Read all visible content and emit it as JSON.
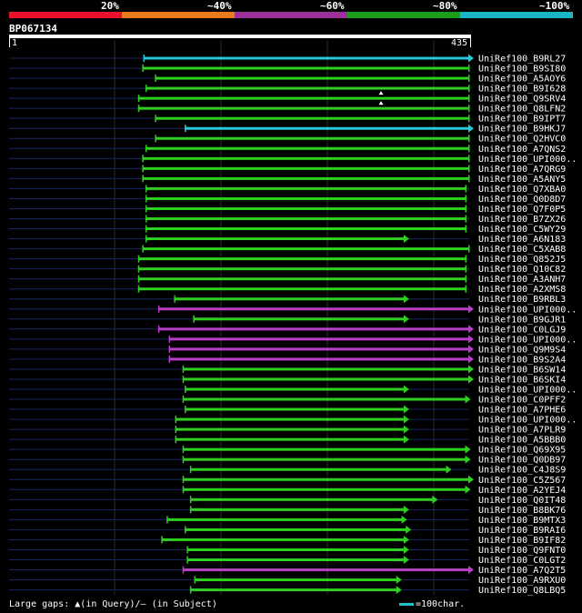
{
  "legend": {
    "labels": [
      "20%",
      "~40%",
      "~60%",
      "~80%",
      "~100%"
    ],
    "colors": [
      "#e8102a",
      "#e87b1c",
      "#9b2f9b",
      "#1a9e1a",
      "#1bb5c4"
    ]
  },
  "query": {
    "id": "BP067134",
    "start": "1",
    "end": "435",
    "length": 435
  },
  "colors": {
    "cyan": "#26c9d9",
    "green": "#2fcf1f",
    "purple": "#b83ec8",
    "background_line": "#1a2560"
  },
  "hits": [
    {
      "id": "UniRef100_B9RL27",
      "start": 128,
      "end": 435,
      "color": "cyan",
      "arrow": true
    },
    {
      "id": "UniRef100_B9SI80",
      "start": 127,
      "end": 435,
      "color": "green",
      "arrow": false
    },
    {
      "id": "UniRef100_A5AOY6",
      "start": 139,
      "end": 435,
      "color": "green",
      "arrow": false
    },
    {
      "id": "UniRef100_B9I628",
      "start": 130,
      "end": 435,
      "color": "green",
      "arrow": false
    },
    {
      "id": "UniRef100_Q9SRV4",
      "start": 123,
      "end": 435,
      "color": "green",
      "arrow": false,
      "gap": true
    },
    {
      "id": "UniRef100_Q8LFN2",
      "start": 123,
      "end": 435,
      "color": "green",
      "arrow": false,
      "gap": true
    },
    {
      "id": "UniRef100_B9IPT7",
      "start": 139,
      "end": 435,
      "color": "green",
      "arrow": false
    },
    {
      "id": "UniRef100_B9HKJ7",
      "start": 167,
      "end": 435,
      "color": "cyan",
      "arrow": true
    },
    {
      "id": "UniRef100_Q2HVC0",
      "start": 139,
      "end": 435,
      "color": "green",
      "arrow": false
    },
    {
      "id": "UniRef100_A7QNS2",
      "start": 130,
      "end": 435,
      "color": "green",
      "arrow": false
    },
    {
      "id": "UniRef100_UPI000..",
      "start": 127,
      "end": 435,
      "color": "green",
      "arrow": false
    },
    {
      "id": "UniRef100_A7QRG9",
      "start": 127,
      "end": 435,
      "color": "green",
      "arrow": false
    },
    {
      "id": "UniRef100_A5ANY5",
      "start": 127,
      "end": 435,
      "color": "green",
      "arrow": false
    },
    {
      "id": "UniRef100_Q7XBA0",
      "start": 130,
      "end": 432,
      "color": "green",
      "arrow": false
    },
    {
      "id": "UniRef100_Q0D8D7",
      "start": 130,
      "end": 432,
      "color": "green",
      "arrow": false
    },
    {
      "id": "UniRef100_Q7F0P5",
      "start": 130,
      "end": 432,
      "color": "green",
      "arrow": false
    },
    {
      "id": "UniRef100_B7ZX26",
      "start": 130,
      "end": 432,
      "color": "green",
      "arrow": false
    },
    {
      "id": "UniRef100_C5WY29",
      "start": 130,
      "end": 432,
      "color": "green",
      "arrow": false
    },
    {
      "id": "UniRef100_A6N183",
      "start": 130,
      "end": 374,
      "color": "green",
      "arrow": true
    },
    {
      "id": "UniRef100_C5XAB8",
      "start": 127,
      "end": 435,
      "color": "green",
      "arrow": false
    },
    {
      "id": "UniRef100_Q852J5",
      "start": 123,
      "end": 432,
      "color": "green",
      "arrow": false
    },
    {
      "id": "UniRef100_Q10C82",
      "start": 123,
      "end": 432,
      "color": "green",
      "arrow": false
    },
    {
      "id": "UniRef100_A3ANH7",
      "start": 123,
      "end": 432,
      "color": "green",
      "arrow": false
    },
    {
      "id": "UniRef100_A2XMS8",
      "start": 123,
      "end": 432,
      "color": "green",
      "arrow": false
    },
    {
      "id": "UniRef100_B9RBL3",
      "start": 157,
      "end": 374,
      "color": "green",
      "arrow": true
    },
    {
      "id": "UniRef100_UPI000..",
      "start": 142,
      "end": 435,
      "color": "purple",
      "arrow": true
    },
    {
      "id": "UniRef100_B9GJR1",
      "start": 175,
      "end": 374,
      "color": "green",
      "arrow": true
    },
    {
      "id": "UniRef100_C0LGJ9",
      "start": 142,
      "end": 435,
      "color": "purple",
      "arrow": true
    },
    {
      "id": "UniRef100_UPI000..",
      "start": 152,
      "end": 435,
      "color": "purple",
      "arrow": true
    },
    {
      "id": "UniRef100_Q9M9S4",
      "start": 152,
      "end": 435,
      "color": "purple",
      "arrow": true
    },
    {
      "id": "UniRef100_B9S2A4",
      "start": 152,
      "end": 435,
      "color": "purple",
      "arrow": true
    },
    {
      "id": "UniRef100_B6SW14",
      "start": 165,
      "end": 435,
      "color": "green",
      "arrow": true
    },
    {
      "id": "UniRef100_B6SKI4",
      "start": 165,
      "end": 435,
      "color": "green",
      "arrow": true
    },
    {
      "id": "UniRef100_UPI000..",
      "start": 167,
      "end": 374,
      "color": "green",
      "arrow": true
    },
    {
      "id": "UniRef100_C0PFF2",
      "start": 165,
      "end": 432,
      "color": "green",
      "arrow": true
    },
    {
      "id": "UniRef100_A7PHE6",
      "start": 167,
      "end": 374,
      "color": "green",
      "arrow": true
    },
    {
      "id": "UniRef100_UPI000..",
      "start": 158,
      "end": 374,
      "color": "green",
      "arrow": true
    },
    {
      "id": "UniRef100_A7PLR9",
      "start": 158,
      "end": 374,
      "color": "green",
      "arrow": true
    },
    {
      "id": "UniRef100_A5BBB0",
      "start": 158,
      "end": 374,
      "color": "green",
      "arrow": true
    },
    {
      "id": "UniRef100_Q69X95",
      "start": 165,
      "end": 432,
      "color": "green",
      "arrow": true
    },
    {
      "id": "UniRef100_Q0DB97",
      "start": 165,
      "end": 432,
      "color": "green",
      "arrow": true
    },
    {
      "id": "UniRef100_C4J8S9",
      "start": 172,
      "end": 414,
      "color": "green",
      "arrow": true
    },
    {
      "id": "UniRef100_C5Z567",
      "start": 165,
      "end": 435,
      "color": "green",
      "arrow": true
    },
    {
      "id": "UniRef100_A2YEJ4",
      "start": 165,
      "end": 432,
      "color": "green",
      "arrow": true
    },
    {
      "id": "UniRef100_Q0IT48",
      "start": 172,
      "end": 401,
      "color": "green",
      "arrow": true
    },
    {
      "id": "UniRef100_B8BK76",
      "start": 172,
      "end": 374,
      "color": "green",
      "arrow": true
    },
    {
      "id": "UniRef100_B9MTX3",
      "start": 150,
      "end": 372,
      "color": "green",
      "arrow": true
    },
    {
      "id": "UniRef100_B9RAI6",
      "start": 167,
      "end": 376,
      "color": "green",
      "arrow": true
    },
    {
      "id": "UniRef100_B9IF82",
      "start": 145,
      "end": 374,
      "color": "green",
      "arrow": true
    },
    {
      "id": "UniRef100_Q9FNT0",
      "start": 169,
      "end": 374,
      "color": "green",
      "arrow": true
    },
    {
      "id": "UniRef100_C0LGT2",
      "start": 169,
      "end": 374,
      "color": "green",
      "arrow": true
    },
    {
      "id": "UniRef100_A7Q2T5",
      "start": 165,
      "end": 435,
      "color": "purple",
      "arrow": true
    },
    {
      "id": "UniRef100_A9RXU0",
      "start": 176,
      "end": 367,
      "color": "green",
      "arrow": true
    },
    {
      "id": "UniRef100_Q8LBQ5",
      "start": 172,
      "end": 367,
      "color": "green",
      "arrow": true
    }
  ],
  "footer": {
    "gaps_label": "Large gaps:",
    "query_symbol": "▲",
    "query_text": "(in Query)/",
    "subject_symbol": "—",
    "subject_text": "(in Subject)",
    "scale_text": "=100char."
  }
}
